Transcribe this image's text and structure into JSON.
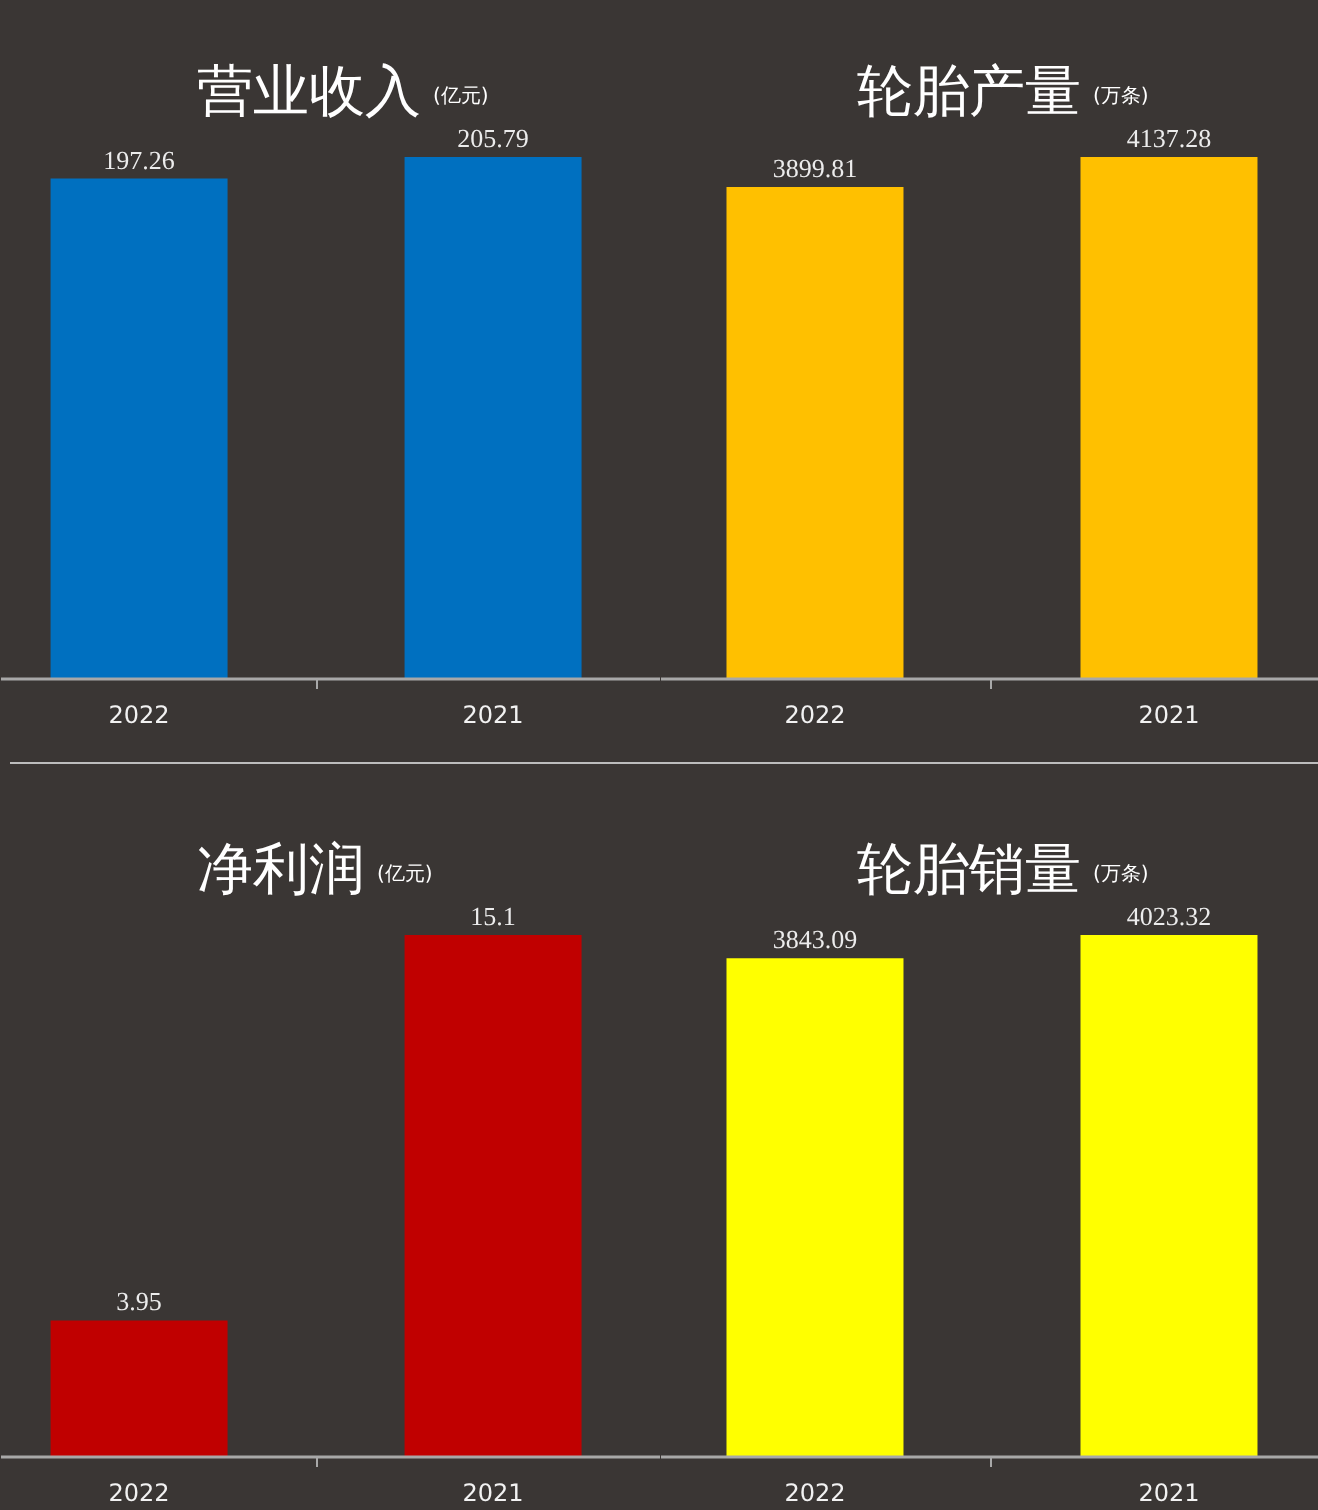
{
  "chart_data": [
    {
      "type": "bar",
      "title": "营业收入",
      "subtitle": "(亿元)",
      "categories": [
        "2022",
        "2021"
      ],
      "values": [
        197.26,
        205.79
      ],
      "color": "#0070c0",
      "data_labels": true,
      "grid": false,
      "tick_labels": "x"
    },
    {
      "type": "bar",
      "title": "轮胎产量",
      "subtitle": "(万条)",
      "categories": [
        "2022",
        "2021"
      ],
      "values": [
        3899.81,
        4137.28
      ],
      "color": "#ffc000",
      "data_labels": true,
      "grid": false,
      "tick_labels": "x"
    },
    {
      "type": "bar",
      "title": "净利润",
      "subtitle": "(亿元)",
      "categories": [
        "2022",
        "2021"
      ],
      "values": [
        3.95,
        15.1
      ],
      "color": "#c00000",
      "data_labels": true,
      "grid": false,
      "tick_labels": "x"
    },
    {
      "type": "bar",
      "title": "轮胎销量",
      "subtitle": "(万条)",
      "categories": [
        "2022",
        "2021"
      ],
      "values": [
        3843.09,
        4023.32
      ],
      "color": "#ffff00",
      "data_labels": true,
      "grid": false,
      "tick_labels": "x"
    }
  ]
}
